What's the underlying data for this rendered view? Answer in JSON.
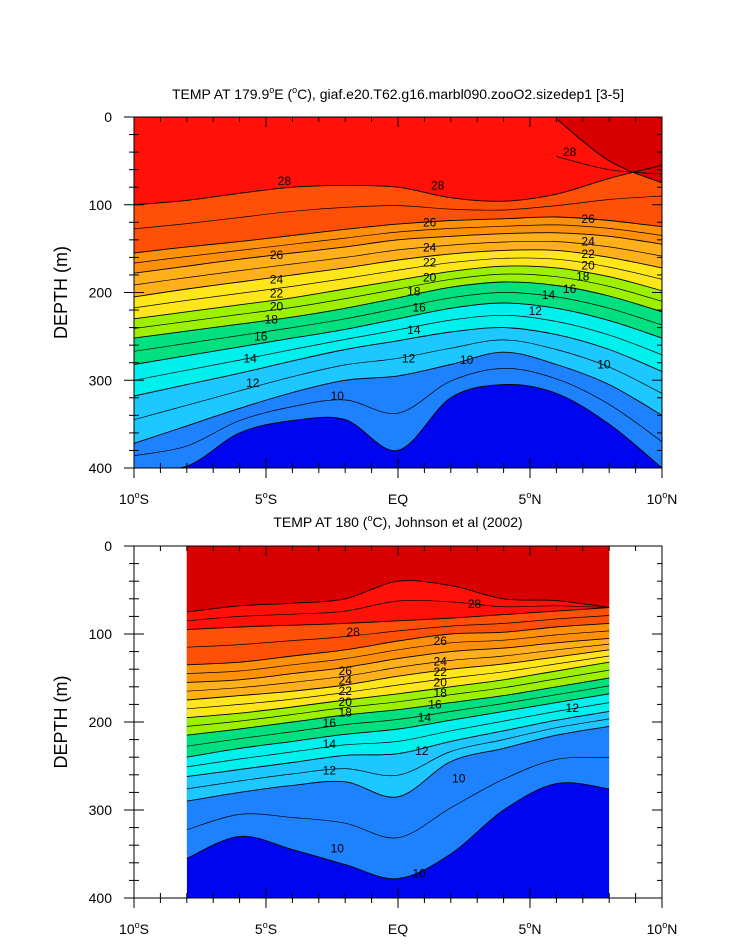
{
  "chart_data": [
    {
      "type": "contour",
      "title": "TEMP AT 179.9°E (°C), giaf.e20.T62.g16.marbl090.zooO2.sizedep1 [3-5]",
      "title_parts": {
        "pre": "TEMP AT 179.9",
        "deg1": "o",
        "mid": "E (",
        "deg2": "o",
        "post": "C), giaf.e20.T62.g16.marbl090.zooO2.sizedep1 [3-5]"
      },
      "xlabel": "",
      "ylabel": "DEPTH (m)",
      "xlim": [
        -10,
        10
      ],
      "ylim": [
        400,
        0
      ],
      "data_xlim": [
        -10,
        10
      ],
      "x_ticks": [
        -10,
        -5,
        0,
        5,
        10
      ],
      "x_tick_labels": [
        {
          "num": "10",
          "deg": "o",
          "suf": "S"
        },
        {
          "num": "5",
          "deg": "o",
          "suf": "S"
        },
        {
          "num": "EQ",
          "deg": "",
          "suf": ""
        },
        {
          "num": "5",
          "deg": "o",
          "suf": "N"
        },
        {
          "num": "10",
          "deg": "o",
          "suf": "N"
        }
      ],
      "y_ticks": [
        0,
        100,
        200,
        300,
        400
      ],
      "y_tick_labels": [
        "0",
        "100",
        "200",
        "300",
        "400"
      ],
      "contour_levels": [
        28,
        26,
        24,
        22,
        20,
        18,
        16,
        14,
        12,
        10
      ],
      "isotherm_depths": {
        "lat": [
          -10,
          -8,
          -6,
          -4,
          -2,
          0,
          2,
          4,
          6,
          8,
          10
        ],
        "t29": [
          null,
          null,
          null,
          null,
          null,
          null,
          null,
          null,
          2,
          50,
          75
        ],
        "t28": [
          100,
          95,
          87,
          80,
          78,
          80,
          92,
          96,
          88,
          70,
          55
        ],
        "t26": [
          155,
          148,
          142,
          135,
          128,
          122,
          118,
          116,
          114,
          118,
          125
        ],
        "t24": [
          178,
          170,
          162,
          155,
          148,
          140,
          136,
          133,
          132,
          136,
          145
        ],
        "t22": [
          205,
          196,
          188,
          180,
          172,
          163,
          156,
          152,
          152,
          160,
          172
        ],
        "t20": [
          230,
          222,
          214,
          206,
          196,
          186,
          176,
          170,
          172,
          182,
          198
        ],
        "t18": [
          252,
          244,
          236,
          228,
          218,
          206,
          194,
          188,
          192,
          204,
          222
        ],
        "t16": [
          282,
          272,
          262,
          252,
          242,
          230,
          218,
          212,
          218,
          232,
          252
        ],
        "t14": [
          318,
          305,
          292,
          278,
          265,
          255,
          245,
          240,
          248,
          265,
          290
        ],
        "t12": [
          372,
          352,
          332,
          314,
          300,
          295,
          282,
          268,
          282,
          305,
          340
        ],
        "t10": [
          400,
          398,
          360,
          346,
          345,
          380,
          320,
          305,
          315,
          350,
          400
        ]
      },
      "labels_shown": [
        {
          "value": 28,
          "lat": -4.3,
          "depth": 73
        },
        {
          "value": 28,
          "lat": 1.5,
          "depth": 78
        },
        {
          "value": 28,
          "lat": 6.5,
          "depth": 40
        },
        {
          "value": 26,
          "lat": 1.2,
          "depth": 120
        },
        {
          "value": 26,
          "lat": 7.2,
          "depth": 116
        },
        {
          "value": 26,
          "lat": -4.6,
          "depth": 157
        },
        {
          "value": 24,
          "lat": 1.2,
          "depth": 149
        },
        {
          "value": 24,
          "lat": 7.2,
          "depth": 142
        },
        {
          "value": 24,
          "lat": -4.6,
          "depth": 185
        },
        {
          "value": 22,
          "lat": 1.2,
          "depth": 166
        },
        {
          "value": 22,
          "lat": 7.2,
          "depth": 156
        },
        {
          "value": 22,
          "lat": -4.6,
          "depth": 201
        },
        {
          "value": 20,
          "lat": 1.2,
          "depth": 183
        },
        {
          "value": 20,
          "lat": 7.2,
          "depth": 169
        },
        {
          "value": 20,
          "lat": -4.6,
          "depth": 216
        },
        {
          "value": 18,
          "lat": 0.6,
          "depth": 199
        },
        {
          "value": 18,
          "lat": 7.0,
          "depth": 182
        },
        {
          "value": 18,
          "lat": -4.8,
          "depth": 231
        },
        {
          "value": 16,
          "lat": 0.8,
          "depth": 217
        },
        {
          "value": 16,
          "lat": 6.5,
          "depth": 196
        },
        {
          "value": 16,
          "lat": -5.2,
          "depth": 250
        },
        {
          "value": 14,
          "lat": 0.6,
          "depth": 243
        },
        {
          "value": 14,
          "lat": 5.7,
          "depth": 203
        },
        {
          "value": 14,
          "lat": -5.6,
          "depth": 275
        },
        {
          "value": 12,
          "lat": 0.4,
          "depth": 275
        },
        {
          "value": 12,
          "lat": 5.2,
          "depth": 221
        },
        {
          "value": 12,
          "lat": -5.5,
          "depth": 303
        },
        {
          "value": 10,
          "lat": -2.3,
          "depth": 318
        },
        {
          "value": 10,
          "lat": 2.6,
          "depth": 277
        },
        {
          "value": 10,
          "lat": 7.8,
          "depth": 282
        }
      ]
    },
    {
      "type": "contour",
      "title": "TEMP AT 180 (°C), Johnson et al (2002)",
      "title_parts": {
        "pre": "TEMP AT 180 (",
        "deg1": "o",
        "mid": "C), Johnson et al (2002)",
        "deg2": "",
        "post": ""
      },
      "xlabel": "",
      "ylabel": "DEPTH (m)",
      "xlim": [
        -10,
        10
      ],
      "ylim": [
        400,
        0
      ],
      "data_xlim": [
        -8,
        8
      ],
      "x_ticks": [
        -10,
        -5,
        0,
        5,
        10
      ],
      "x_tick_labels": [
        {
          "num": "10",
          "deg": "o",
          "suf": "S"
        },
        {
          "num": "5",
          "deg": "o",
          "suf": "S"
        },
        {
          "num": "EQ",
          "deg": "",
          "suf": ""
        },
        {
          "num": "5",
          "deg": "o",
          "suf": "N"
        },
        {
          "num": "10",
          "deg": "o",
          "suf": "N"
        }
      ],
      "y_ticks": [
        0,
        100,
        200,
        300,
        400
      ],
      "y_tick_labels": [
        "0",
        "100",
        "200",
        "300",
        "400"
      ],
      "contour_levels": [
        28,
        26,
        24,
        22,
        20,
        18,
        16,
        14,
        12,
        10
      ],
      "isotherm_depths": {
        "lat": [
          -8,
          -6,
          -4,
          -2,
          0,
          2,
          4,
          6,
          8
        ],
        "t29": [
          75,
          68,
          65,
          60,
          40,
          45,
          60,
          62,
          70
        ],
        "t28": [
          95,
          92,
          90,
          88,
          85,
          82,
          78,
          74,
          70
        ],
        "t26": [
          135,
          132,
          125,
          118,
          108,
          100,
          98,
          92,
          88
        ],
        "t24": [
          155,
          152,
          145,
          138,
          128,
          120,
          116,
          110,
          105
        ],
        "t22": [
          175,
          170,
          165,
          158,
          148,
          140,
          134,
          126,
          118
        ],
        "t20": [
          195,
          190,
          183,
          175,
          168,
          160,
          152,
          142,
          132
        ],
        "t18": [
          215,
          208,
          200,
          192,
          186,
          178,
          170,
          160,
          150
        ],
        "t16": [
          240,
          230,
          222,
          214,
          208,
          198,
          188,
          178,
          168
        ],
        "t14": [
          262,
          254,
          246,
          238,
          236,
          222,
          210,
          198,
          188
        ],
        "t12": [
          290,
          280,
          272,
          268,
          285,
          245,
          230,
          215,
          205
        ],
        "t10": [
          355,
          330,
          345,
          362,
          378,
          350,
          300,
          270,
          276
        ]
      },
      "labels_shown": [
        {
          "value": 28,
          "lat": 2.9,
          "depth": 66
        },
        {
          "value": 28,
          "lat": -1.7,
          "depth": 98
        },
        {
          "value": 26,
          "lat": 1.6,
          "depth": 108
        },
        {
          "value": 26,
          "lat": -2.0,
          "depth": 142
        },
        {
          "value": 24,
          "lat": 1.6,
          "depth": 131
        },
        {
          "value": 24,
          "lat": -2.0,
          "depth": 153
        },
        {
          "value": 22,
          "lat": 1.6,
          "depth": 143
        },
        {
          "value": 22,
          "lat": -2.0,
          "depth": 165
        },
        {
          "value": 20,
          "lat": 1.6,
          "depth": 155
        },
        {
          "value": 20,
          "lat": -2.0,
          "depth": 177
        },
        {
          "value": 18,
          "lat": 1.6,
          "depth": 167
        },
        {
          "value": 18,
          "lat": -2.0,
          "depth": 189
        },
        {
          "value": 16,
          "lat": 1.4,
          "depth": 180
        },
        {
          "value": 16,
          "lat": -2.6,
          "depth": 201
        },
        {
          "value": 14,
          "lat": 1.0,
          "depth": 195
        },
        {
          "value": 14,
          "lat": -2.6,
          "depth": 225
        },
        {
          "value": 12,
          "lat": 0.9,
          "depth": 233
        },
        {
          "value": 12,
          "lat": 6.6,
          "depth": 184
        },
        {
          "value": 12,
          "lat": -2.6,
          "depth": 255
        },
        {
          "value": 10,
          "lat": 2.3,
          "depth": 264
        },
        {
          "value": 10,
          "lat": -2.3,
          "depth": 344
        },
        {
          "value": 10,
          "lat": 0.8,
          "depth": 372
        }
      ]
    }
  ],
  "colors": {
    "cold_deep": "#0005f0",
    "t10": "#1f56f5",
    "t11": "#1e82ff",
    "t12": "#1aa6ff",
    "t13": "#1cc8ff",
    "t14": "#1de2ff",
    "t15": "#00f0ee",
    "t16": "#00e8b8",
    "t17": "#00e080",
    "t18": "#10e040",
    "t19": "#40e800",
    "t20": "#9cf000",
    "t21": "#e6ff1a",
    "t22": "#ffe61a",
    "t23": "#ffcc18",
    "t24": "#ffb01a",
    "t26": "#ff9008",
    "t28": "#ff5008",
    "t29": "#ff1008",
    "t30": "#d80000"
  }
}
